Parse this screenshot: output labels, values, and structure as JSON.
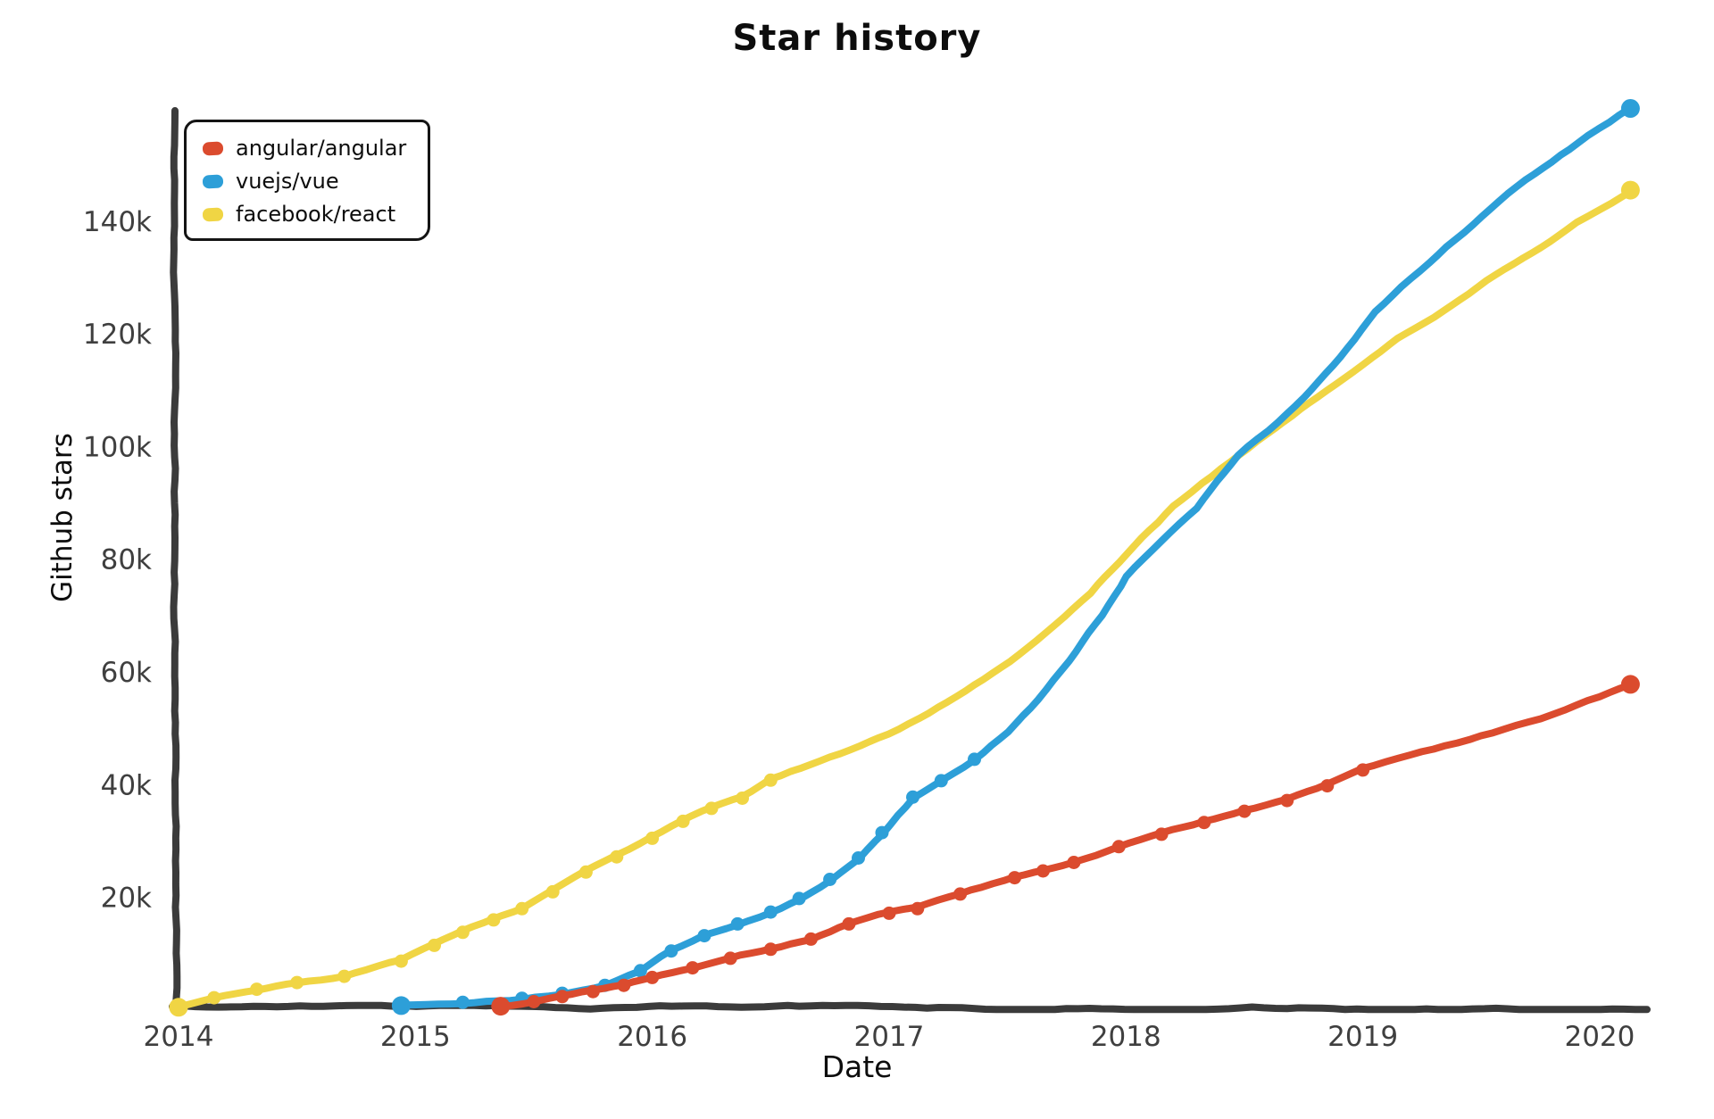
{
  "chart_data": {
    "type": "line",
    "style": "xkcd-sketch",
    "title": "Star history",
    "xlabel": "Date",
    "ylabel": "Github stars",
    "grid": false,
    "legend_position": "upper left",
    "xlim": [
      2014,
      2020.2
    ],
    "ylim": [
      0,
      159.6
    ],
    "x_ticks": [
      {
        "value": 2014,
        "label": "2014"
      },
      {
        "value": 2015,
        "label": "2015"
      },
      {
        "value": 2016,
        "label": "2016"
      },
      {
        "value": 2017,
        "label": "2017"
      },
      {
        "value": 2018,
        "label": "2018"
      },
      {
        "value": 2019,
        "label": "2019"
      },
      {
        "value": 2020,
        "label": "2020"
      }
    ],
    "y_ticks": [
      {
        "value": 20,
        "label": "20k"
      },
      {
        "value": 40,
        "label": "40k"
      },
      {
        "value": 60,
        "label": "60k"
      },
      {
        "value": 80,
        "label": "80k"
      },
      {
        "value": 100,
        "label": "100k"
      },
      {
        "value": 120,
        "label": "120k"
      },
      {
        "value": 140,
        "label": "140k"
      }
    ],
    "y_unit": "thousand stars",
    "axis_color": "#3b3b3b",
    "tick_text_color": "#3f3f3f",
    "series": [
      {
        "name": "facebook/react",
        "color": "#f0d544",
        "markers_until_x": 2016.55,
        "points": [
          [
            2014.0,
            0.5
          ],
          [
            2014.15,
            2.2
          ],
          [
            2014.33,
            3.7
          ],
          [
            2014.5,
            4.9
          ],
          [
            2014.7,
            6.0
          ],
          [
            2014.94,
            8.7
          ],
          [
            2015.08,
            11.5
          ],
          [
            2015.2,
            13.8
          ],
          [
            2015.33,
            16.0
          ],
          [
            2015.45,
            18.0
          ],
          [
            2015.58,
            21.0
          ],
          [
            2015.72,
            24.5
          ],
          [
            2015.85,
            27.2
          ],
          [
            2016.0,
            30.5
          ],
          [
            2016.13,
            33.5
          ],
          [
            2016.25,
            35.8
          ],
          [
            2016.38,
            37.6
          ],
          [
            2016.5,
            40.8
          ],
          [
            2016.63,
            42.8
          ],
          [
            2016.75,
            44.8
          ],
          [
            2016.88,
            46.8
          ],
          [
            2017.0,
            48.8
          ],
          [
            2017.13,
            51.5
          ],
          [
            2017.25,
            54.5
          ],
          [
            2017.4,
            58.5
          ],
          [
            2017.55,
            63.0
          ],
          [
            2017.7,
            68.5
          ],
          [
            2017.85,
            74.0
          ],
          [
            2018.0,
            81.0
          ],
          [
            2018.2,
            89.5
          ],
          [
            2018.4,
            96.0
          ],
          [
            2018.55,
            101.0
          ],
          [
            2018.7,
            105.5
          ],
          [
            2018.85,
            110.0
          ],
          [
            2019.0,
            114.5
          ],
          [
            2019.15,
            119.0
          ],
          [
            2019.3,
            123.0
          ],
          [
            2019.45,
            127.0
          ],
          [
            2019.6,
            131.5
          ],
          [
            2019.75,
            135.5
          ],
          [
            2019.9,
            140.0
          ],
          [
            2020.05,
            143.5
          ],
          [
            2020.13,
            145.5
          ]
        ]
      },
      {
        "name": "vuejs/vue",
        "color": "#2d9fd8",
        "markers_until_x": 2017.45,
        "points": [
          [
            2014.94,
            0.8
          ],
          [
            2015.2,
            1.4
          ],
          [
            2015.45,
            2.1
          ],
          [
            2015.62,
            3.0
          ],
          [
            2015.8,
            4.4
          ],
          [
            2015.95,
            7.0
          ],
          [
            2016.08,
            10.5
          ],
          [
            2016.22,
            13.2
          ],
          [
            2016.36,
            15.3
          ],
          [
            2016.5,
            17.4
          ],
          [
            2016.62,
            19.8
          ],
          [
            2016.75,
            23.2
          ],
          [
            2016.87,
            27.0
          ],
          [
            2016.97,
            31.5
          ],
          [
            2017.1,
            37.8
          ],
          [
            2017.22,
            40.7
          ],
          [
            2017.36,
            44.5
          ],
          [
            2017.5,
            49.5
          ],
          [
            2017.63,
            55.0
          ],
          [
            2017.76,
            62.0
          ],
          [
            2017.9,
            70.0
          ],
          [
            2018.0,
            77.0
          ],
          [
            2018.15,
            83.5
          ],
          [
            2018.3,
            89.0
          ],
          [
            2018.47,
            98.5
          ],
          [
            2018.6,
            103.0
          ],
          [
            2018.75,
            109.0
          ],
          [
            2018.9,
            116.0
          ],
          [
            2019.05,
            124.0
          ],
          [
            2019.2,
            130.0
          ],
          [
            2019.35,
            135.5
          ],
          [
            2019.5,
            141.0
          ],
          [
            2019.65,
            146.0
          ],
          [
            2019.8,
            150.5
          ],
          [
            2019.95,
            155.0
          ],
          [
            2020.13,
            160.0
          ]
        ]
      },
      {
        "name": "angular/angular",
        "color": "#db4b2e",
        "markers_until_x": 2019.1,
        "points": [
          [
            2015.36,
            0.7
          ],
          [
            2015.5,
            1.5
          ],
          [
            2015.62,
            2.4
          ],
          [
            2015.75,
            3.3
          ],
          [
            2015.88,
            4.4
          ],
          [
            2016.0,
            5.8
          ],
          [
            2016.17,
            7.5
          ],
          [
            2016.33,
            9.2
          ],
          [
            2016.5,
            10.8
          ],
          [
            2016.67,
            12.6
          ],
          [
            2016.83,
            15.3
          ],
          [
            2017.0,
            17.2
          ],
          [
            2017.12,
            18.0
          ],
          [
            2017.3,
            20.6
          ],
          [
            2017.53,
            23.5
          ],
          [
            2017.65,
            24.7
          ],
          [
            2017.78,
            26.2
          ],
          [
            2017.97,
            29.0
          ],
          [
            2018.15,
            31.2
          ],
          [
            2018.33,
            33.3
          ],
          [
            2018.5,
            35.3
          ],
          [
            2018.68,
            37.2
          ],
          [
            2018.85,
            39.8
          ],
          [
            2019.0,
            42.6
          ],
          [
            2019.2,
            45.0
          ],
          [
            2019.4,
            47.3
          ],
          [
            2019.6,
            49.8
          ],
          [
            2019.8,
            52.5
          ],
          [
            2020.0,
            55.6
          ],
          [
            2020.13,
            57.8
          ]
        ]
      }
    ],
    "legend_order": [
      "angular/angular",
      "vuejs/vue",
      "facebook/react"
    ]
  }
}
